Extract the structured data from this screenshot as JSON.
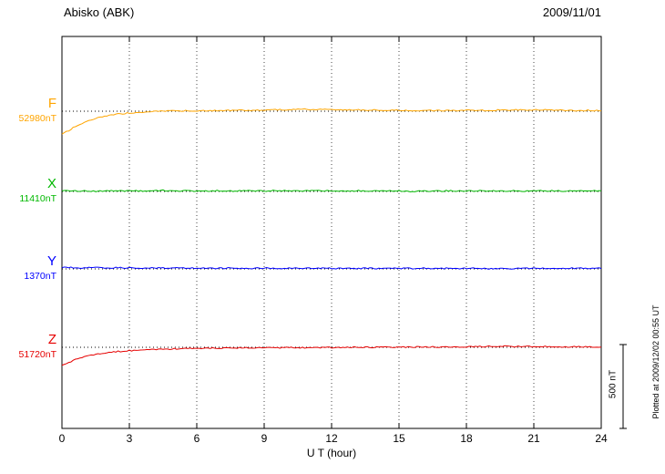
{
  "chart": {
    "title": "Abisko (ABK)",
    "date": "2009/11/01",
    "xlabel": "U T (hour)",
    "plotted_at": "Plotted at 2009/12/02 00:55 UT"
  },
  "chart_data": {
    "type": "line",
    "title": "Abisko (ABK) magnetogram 2009/11/01",
    "x_unit": "hour",
    "xlim": [
      0,
      24
    ],
    "xticks": [
      0,
      3,
      6,
      9,
      12,
      15,
      18,
      21,
      24
    ],
    "grid_hours": [
      3,
      6,
      9,
      12,
      15,
      18,
      21
    ],
    "grid": "dotted-vertical",
    "x_step_hours": 0.5,
    "scale_bar": {
      "label": "500 nT",
      "nT": 500
    },
    "series": [
      {
        "name": "F",
        "base_label": "52980nT",
        "baseline_nT": 52980,
        "color": "#FFA500",
        "deviations_nT": [
          -140,
          -98,
          -66,
          -44,
          -28,
          -17,
          -10,
          -5,
          -2,
          0,
          2,
          3,
          3,
          4,
          4,
          5,
          5,
          6,
          7,
          8,
          10,
          11,
          11,
          10,
          9,
          8,
          7,
          7,
          6,
          6,
          5,
          5,
          5,
          4,
          4,
          4,
          5,
          5,
          6,
          6,
          7,
          7,
          8,
          8,
          7,
          6,
          5,
          5,
          5
        ]
      },
      {
        "name": "X",
        "base_label": "11410nT",
        "baseline_nT": 11410,
        "color": "#00B800",
        "deviations_nT": [
          3,
          2,
          4,
          1,
          3,
          5,
          2,
          4,
          3,
          6,
          2,
          4,
          3,
          2,
          5,
          3,
          4,
          2,
          3,
          5,
          3,
          2,
          4,
          3,
          5,
          2,
          3,
          4,
          2,
          3,
          5,
          -3,
          4,
          2,
          3,
          4,
          2,
          5,
          3,
          2,
          4,
          3,
          2,
          4,
          3,
          2,
          4,
          3,
          3
        ]
      },
      {
        "name": "Y",
        "base_label": "1370nT",
        "baseline_nT": 1370,
        "color": "#0000FF",
        "deviations_nT": [
          9,
          8,
          7,
          8,
          6,
          7,
          5,
          6,
          7,
          5,
          6,
          4,
          5,
          6,
          4,
          5,
          3,
          4,
          5,
          3,
          4,
          3,
          4,
          3,
          4,
          2,
          3,
          4,
          2,
          3,
          2,
          3,
          4,
          2,
          3,
          2,
          3,
          4,
          2,
          3,
          2,
          3,
          4,
          3,
          2,
          3,
          4,
          3,
          3
        ]
      },
      {
        "name": "Z",
        "base_label": "51720nT",
        "baseline_nT": 51720,
        "color": "#E60000",
        "deviations_nT": [
          -110,
          -78,
          -56,
          -42,
          -32,
          -25,
          -20,
          -16,
          -13,
          -11,
          -9,
          -8,
          -7,
          -6,
          -5,
          -5,
          -4,
          -4,
          -3,
          -3,
          -2,
          -2,
          -2,
          -1,
          -1,
          -1,
          0,
          0,
          0,
          1,
          1,
          1,
          2,
          2,
          2,
          3,
          3,
          4,
          5,
          6,
          6,
          5,
          4,
          4,
          3,
          3,
          3,
          3,
          3
        ]
      }
    ]
  }
}
